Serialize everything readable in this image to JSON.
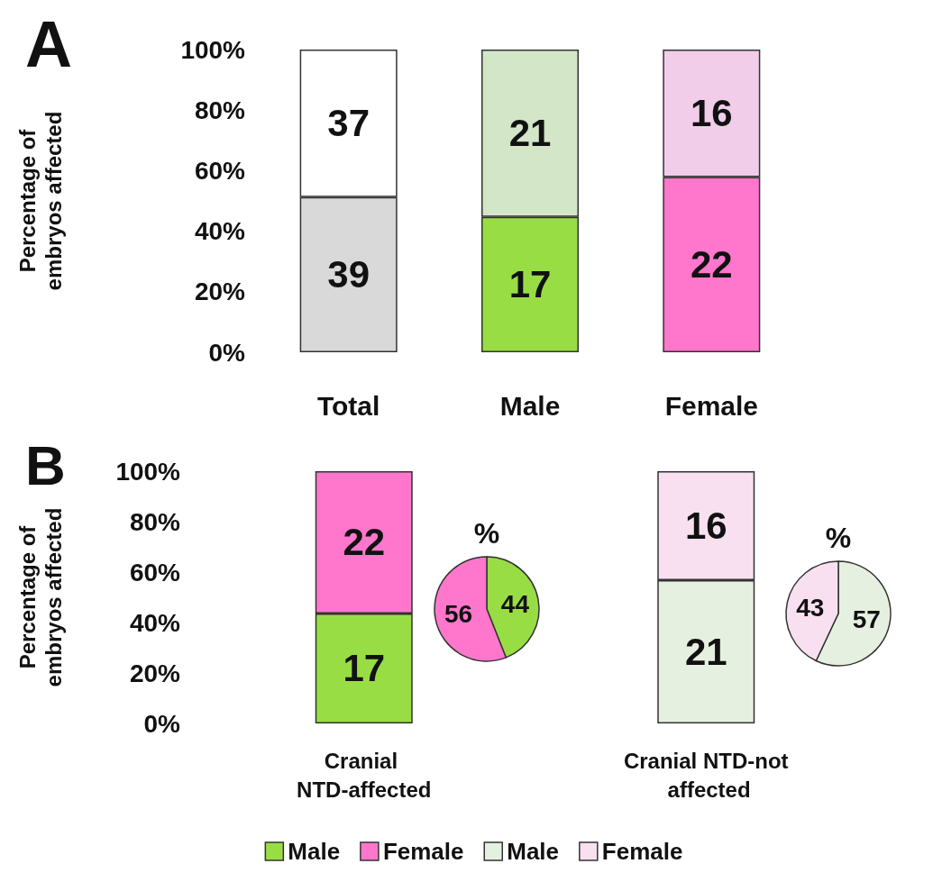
{
  "chart_data": [
    {
      "type": "bar",
      "title": "A",
      "ylabel": "Percentage of embryos affected",
      "categories": [
        "Total",
        "Male",
        "Female"
      ],
      "stacked": true,
      "ylim": [
        0,
        100
      ],
      "yticks": [
        {
          "value": 0,
          "label": "0%"
        },
        {
          "value": 20,
          "label": "20%"
        },
        {
          "value": 40,
          "label": "40%"
        },
        {
          "value": 60,
          "label": "60%"
        },
        {
          "value": 80,
          "label": "80%"
        },
        {
          "value": 100,
          "label": "100%"
        }
      ],
      "series": [
        {
          "colors": [
            "#d9d9d9",
            "#99dd44",
            "#ff77cc"
          ],
          "values": [
            51.3,
            44.7,
            57.9
          ]
        },
        {
          "colors": [
            "#ffffff",
            "#d3e6c8",
            "#f2cde9"
          ],
          "values": [
            48.7,
            55.3,
            42.1
          ]
        }
      ],
      "annotations": [
        "39",
        "17",
        "22",
        "37",
        "21",
        "16"
      ]
    },
    {
      "type": "bar",
      "title": "B",
      "ylabel": "Percentage of embryos affected",
      "categories": [
        "Cranial NTD-affected",
        "Cranial NTD-not affected"
      ],
      "stacked": true,
      "legend": "bottom",
      "ylim": [
        0,
        100
      ],
      "yticks": [
        {
          "value": 0,
          "label": "0%"
        },
        {
          "value": 20,
          "label": "20%"
        },
        {
          "value": 40,
          "label": "40%"
        },
        {
          "value": 60,
          "label": "60%"
        },
        {
          "value": 80,
          "label": "80%"
        },
        {
          "value": 100,
          "label": "100%"
        }
      ],
      "series": [
        {
          "name": "Male",
          "color": "#99dd44",
          "values": [
            43.6,
            null
          ]
        },
        {
          "name": "Female",
          "color": "#ff77cc",
          "values": [
            56.4,
            null
          ]
        },
        {
          "name": "Male",
          "color": "#e6f0e0",
          "values": [
            null,
            56.8
          ]
        },
        {
          "name": "Female",
          "color": "#f8e0f0",
          "values": [
            null,
            43.2
          ]
        }
      ],
      "annotations": [
        "17",
        "22",
        "21",
        "16"
      ]
    },
    {
      "type": "pie",
      "title": "%",
      "categories": [
        null,
        null
      ],
      "values": [
        44,
        56
      ],
      "colors": [
        "#99dd44",
        "#ff77cc"
      ],
      "data_labels": true
    },
    {
      "type": "pie",
      "title": "%",
      "categories": [
        null,
        null
      ],
      "values": [
        57,
        43
      ],
      "colors": [
        "#e6f0e0",
        "#f8e0f0"
      ],
      "data_labels": true
    }
  ]
}
